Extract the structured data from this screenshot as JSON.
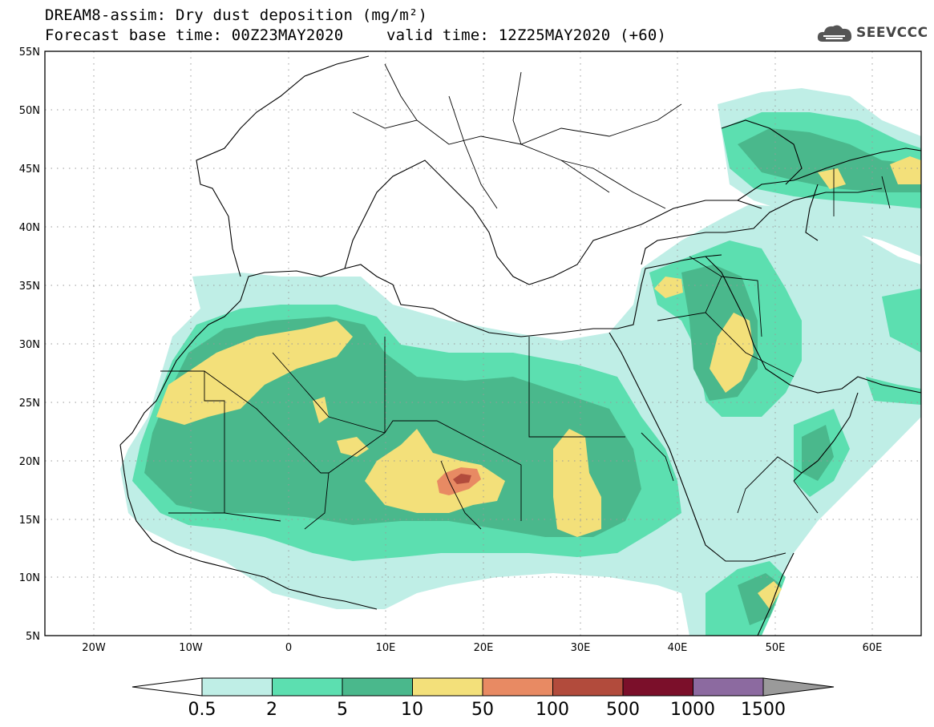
{
  "header": {
    "title": "DREAM8-assim: Dry dust deposition (mg/m²)",
    "base_time": "Forecast base time: 00Z23MAY2020",
    "valid_time": "valid time: 12Z25MAY2020 (+60)"
  },
  "logo": {
    "text": "SEEVCCC",
    "icon": "cloud-icon"
  },
  "map": {
    "lon_labels": [
      "20W",
      "10W",
      "0",
      "10E",
      "20E",
      "30E",
      "40E",
      "50E",
      "60E"
    ],
    "lat_labels": [
      "55N",
      "50N",
      "45N",
      "40N",
      "35N",
      "30N",
      "25N",
      "20N",
      "15N",
      "10N",
      "5N"
    ],
    "lon_range": [
      -25,
      65
    ],
    "lat_range": [
      5,
      55
    ],
    "grid": "dotted"
  },
  "colorbar": {
    "labels": [
      "0.5",
      "2",
      "5",
      "10",
      "50",
      "100",
      "500",
      "1000",
      "1500"
    ],
    "colors": [
      "#bfeee6",
      "#5cdfb0",
      "#4ab88c",
      "#f3e07a",
      "#e88a63",
      "#b24b3c",
      "#7b0f2a",
      "#8c6aa0"
    ],
    "under_color": "#ffffff",
    "over_color": "#9a9a9a"
  }
}
